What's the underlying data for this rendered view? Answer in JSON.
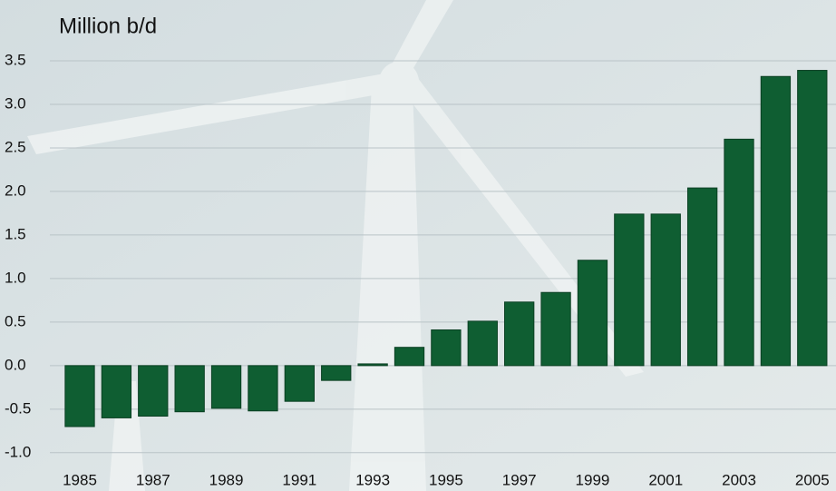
{
  "chart_data": {
    "type": "bar",
    "title": "Million b/d",
    "categories": [
      "1985",
      null,
      "1987",
      null,
      "1989",
      null,
      "1991",
      null,
      "1993",
      null,
      "1995",
      null,
      "1997",
      null,
      "1999",
      null,
      "2001",
      null,
      "2003",
      null,
      "2005"
    ],
    "values": [
      -0.7,
      -0.6,
      -0.58,
      -0.53,
      -0.49,
      -0.52,
      -0.41,
      -0.17,
      0.02,
      0.21,
      0.41,
      0.51,
      0.73,
      0.84,
      1.21,
      1.74,
      1.74,
      2.04,
      2.6,
      3.32,
      3.39
    ],
    "color": "#0f5e32",
    "ylim": [
      -1.2,
      3.75
    ],
    "yticks": [
      {
        "value": -1,
        "label": "-1.0"
      },
      -0.5,
      {
        "value": 0,
        "label": "0.0"
      },
      0.5,
      {
        "value": 1,
        "label": "1.0"
      },
      1.5,
      {
        "value": 2,
        "label": "2.0"
      },
      2.5,
      {
        "value": 3,
        "label": "3.0"
      },
      3.5
    ],
    "grid": true
  }
}
